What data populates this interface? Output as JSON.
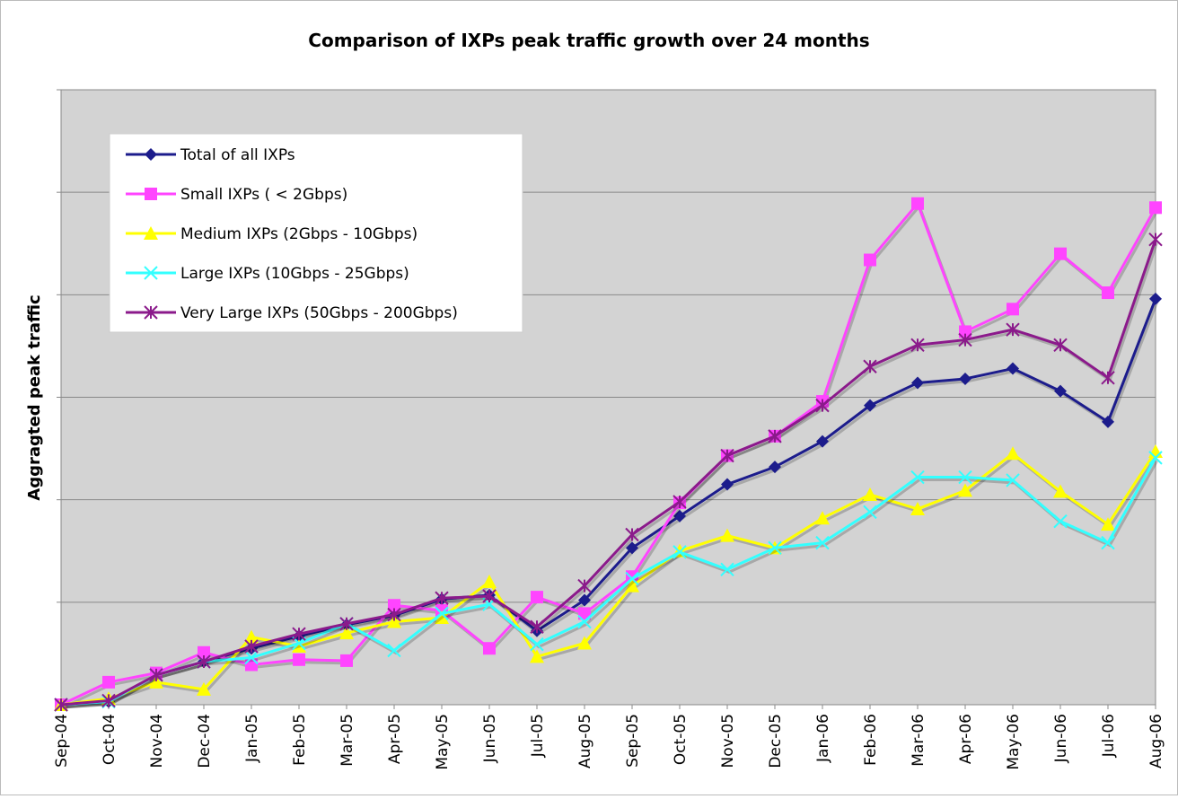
{
  "chart_data": {
    "type": "line",
    "title": "Comparison of IXPs peak traffic growth over 24 months",
    "y_label": "Aggragted peak traffic",
    "categories": [
      "Sep-04",
      "Oct-04",
      "Nov-04",
      "Dec-04",
      "Jan-05",
      "Feb-05",
      "Mar-05",
      "Apr-05",
      "May-05",
      "Jun-05",
      "Jul-05",
      "Aug-05",
      "Sep-05",
      "Oct-05",
      "Nov-05",
      "Dec-05",
      "Jan-06",
      "Feb-06",
      "Mar-06",
      "Apr-06",
      "May-06",
      "Jun-06",
      "Jul-06",
      "Aug-06"
    ],
    "ylim": [
      0,
      6
    ],
    "yticks": [
      0,
      1,
      2,
      3,
      4,
      5,
      6
    ],
    "grid": true,
    "legend": "upper left",
    "series": [
      {
        "name": "Total of all IXPs",
        "color": "#1c1c8c",
        "marker": "diamond",
        "values": [
          0,
          0.03,
          0.29,
          0.42,
          0.55,
          0.67,
          0.78,
          0.87,
          1.03,
          1.07,
          0.72,
          1.02,
          1.53,
          1.84,
          2.15,
          2.32,
          2.57,
          2.92,
          3.14,
          3.18,
          3.28,
          3.06,
          2.76,
          3.96
        ]
      },
      {
        "name": "Small IXPs ( < 2Gbps)",
        "color": "#ff44ff",
        "marker": "square",
        "values": [
          0,
          0.22,
          0.31,
          0.51,
          0.39,
          0.44,
          0.43,
          0.97,
          0.92,
          0.55,
          1.05,
          0.89,
          1.25,
          1.97,
          2.43,
          2.62,
          2.96,
          4.34,
          4.89,
          3.64,
          3.86,
          4.4,
          4.02,
          4.85
        ]
      },
      {
        "name": "Medium IXPs (2Gbps - 10Gbps)",
        "color": "#ffff00",
        "marker": "triangle",
        "values": [
          0,
          0.06,
          0.22,
          0.15,
          0.66,
          0.57,
          0.7,
          0.81,
          0.85,
          1.2,
          0.47,
          0.6,
          1.16,
          1.5,
          1.65,
          1.53,
          1.82,
          2.05,
          1.91,
          2.09,
          2.45,
          2.08,
          1.76,
          2.47
        ]
      },
      {
        "name": "Large IXPs (10Gbps - 25Gbps)",
        "color": "#33ffff",
        "marker": "x",
        "values": [
          0,
          0.03,
          0.29,
          0.42,
          0.46,
          0.6,
          0.79,
          0.53,
          0.89,
          0.98,
          0.59,
          0.81,
          1.23,
          1.49,
          1.32,
          1.53,
          1.58,
          1.88,
          2.22,
          2.22,
          2.19,
          1.79,
          1.58,
          2.41
        ]
      },
      {
        "name": "Very Large IXPs (50Gbps - 200Gbps)",
        "color": "#8b1a8b",
        "marker": "star",
        "values": [
          0,
          0.04,
          0.29,
          0.42,
          0.57,
          0.69,
          0.79,
          0.88,
          1.04,
          1.06,
          0.76,
          1.16,
          1.66,
          1.98,
          2.43,
          2.62,
          2.92,
          3.3,
          3.51,
          3.56,
          3.66,
          3.51,
          3.19,
          4.54
        ]
      }
    ]
  }
}
